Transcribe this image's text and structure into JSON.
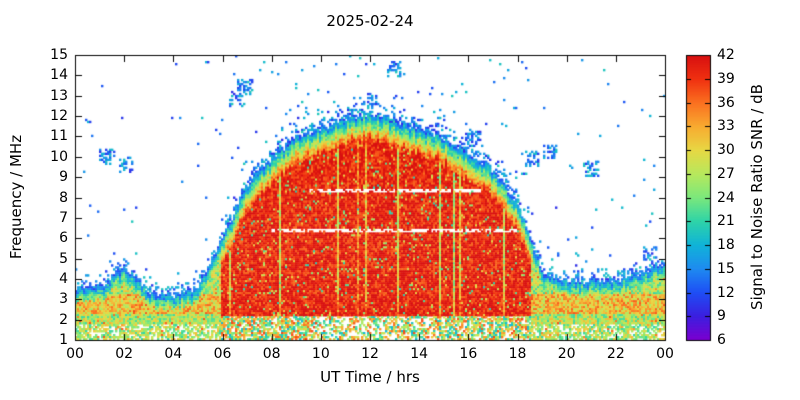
{
  "chart_data": {
    "type": "heatmap",
    "title": "2025-02-24",
    "xlabel": "UT Time / hrs",
    "ylabel": "Frequency / MHz",
    "colorbar_label": "Signal to Noise Ratio SNR / dB",
    "x_range_hours": [
      0,
      24
    ],
    "x_tick_labels": [
      "00",
      "02",
      "04",
      "06",
      "08",
      "10",
      "12",
      "14",
      "16",
      "18",
      "20",
      "22",
      "00"
    ],
    "y_range_mhz": [
      1,
      15
    ],
    "y_tick_labels": [
      "1",
      "2",
      "3",
      "4",
      "5",
      "6",
      "7",
      "8",
      "9",
      "10",
      "11",
      "12",
      "13",
      "14",
      "15"
    ],
    "colorbar_range_db": [
      6,
      42
    ],
    "colorbar_tick_labels": [
      "6",
      "9",
      "12",
      "15",
      "18",
      "21",
      "24",
      "27",
      "30",
      "33",
      "36",
      "39",
      "42"
    ],
    "colormap_stops": [
      [
        6,
        "#7a00d0"
      ],
      [
        9,
        "#3b1fe0"
      ],
      [
        12,
        "#1e50f5"
      ],
      [
        15,
        "#1e8cf0"
      ],
      [
        18,
        "#10b4d8"
      ],
      [
        21,
        "#2fd4a8"
      ],
      [
        24,
        "#7ce87c"
      ],
      [
        27,
        "#b8e85c"
      ],
      [
        30,
        "#e8d844"
      ],
      [
        33,
        "#f8aa30"
      ],
      [
        36,
        "#fa7020"
      ],
      [
        39,
        "#f03010"
      ],
      [
        42,
        "#d81010"
      ]
    ],
    "envelope_max_freq_by_hour": [
      3.6,
      3.6,
      4.6,
      3.4,
      3.2,
      3.6,
      6.0,
      8.6,
      10.0,
      11.0,
      11.4,
      11.9,
      12.2,
      11.8,
      11.4,
      11.0,
      10.2,
      9.4,
      7.8,
      4.4,
      4.0,
      3.9,
      4.0,
      4.3,
      4.8
    ],
    "day_hours": [
      6.5,
      18.2
    ],
    "gap_bands": [
      {
        "freq": 6.35,
        "halfwidth": 0.1,
        "t0": 8.0,
        "t1": 18.0
      },
      {
        "freq": 8.3,
        "halfwidth": 0.1,
        "t0": 9.5,
        "t1": 16.5
      }
    ],
    "speckle_clusters": [
      {
        "t": 1.3,
        "f": 10.0
      },
      {
        "t": 2.1,
        "f": 9.6
      },
      {
        "t": 6.6,
        "f": 12.9
      },
      {
        "t": 6.9,
        "f": 13.4
      },
      {
        "t": 12.0,
        "f": 12.7
      },
      {
        "t": 13.0,
        "f": 14.3
      },
      {
        "t": 16.2,
        "f": 10.9
      },
      {
        "t": 18.6,
        "f": 9.9
      },
      {
        "t": 19.3,
        "f": 10.3
      },
      {
        "t": 21.0,
        "f": 9.4
      },
      {
        "t": 23.4,
        "f": 5.2
      }
    ],
    "noise_seed": 20250224
  }
}
